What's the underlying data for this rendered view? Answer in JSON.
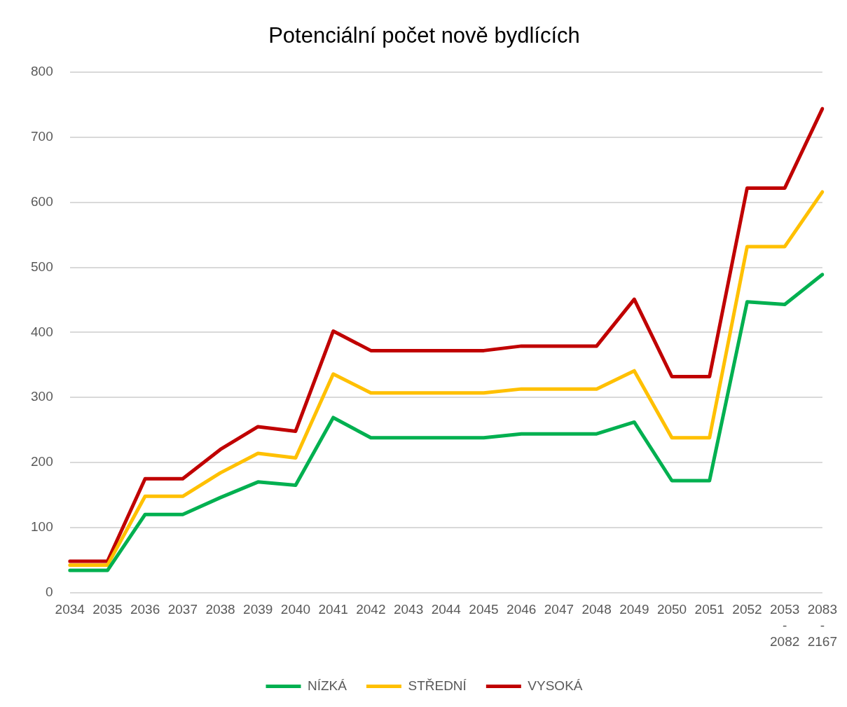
{
  "chart_data": {
    "type": "line",
    "title": "Potenciální počet nově bydlících",
    "categories": [
      "2034",
      "2035",
      "2036",
      "2037",
      "2038",
      "2039",
      "2040",
      "2041",
      "2042",
      "2043",
      "2044",
      "2045",
      "2046",
      "2047",
      "2048",
      "2049",
      "2050",
      "2051",
      "2052",
      "2053 - 2082",
      "2083 - 2167"
    ],
    "series": [
      {
        "name": "NÍZKÁ",
        "color": "#00b050",
        "values": [
          34,
          34,
          120,
          120,
          146,
          170,
          165,
          269,
          238,
          238,
          238,
          238,
          244,
          244,
          244,
          262,
          172,
          172,
          447,
          443,
          489
        ]
      },
      {
        "name": "STŘEDNÍ",
        "color": "#ffc000",
        "values": [
          42,
          42,
          148,
          148,
          184,
          214,
          207,
          336,
          307,
          307,
          307,
          307,
          313,
          313,
          313,
          341,
          238,
          238,
          532,
          532,
          616
        ]
      },
      {
        "name": "VYSOKÁ",
        "color": "#c00000",
        "values": [
          48,
          48,
          175,
          175,
          220,
          255,
          248,
          402,
          372,
          372,
          372,
          372,
          379,
          379,
          379,
          451,
          332,
          332,
          622,
          622,
          744
        ]
      }
    ],
    "ylim": [
      0,
      800
    ],
    "yticks": [
      0,
      100,
      200,
      300,
      400,
      500,
      600,
      700,
      800
    ],
    "grid": "y",
    "legend": "bottom",
    "marker": "none",
    "line_style": "solid"
  }
}
